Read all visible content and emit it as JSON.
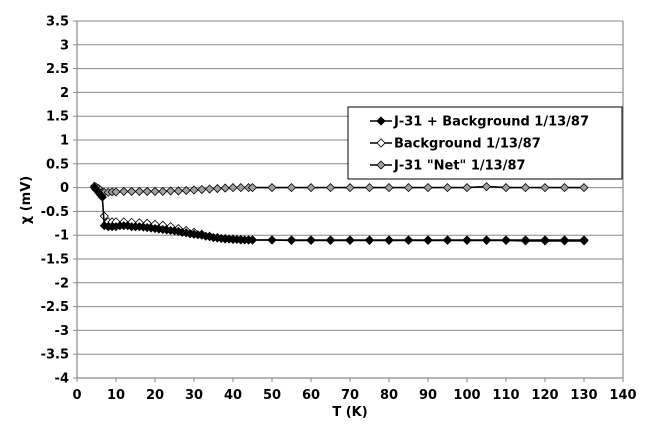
{
  "chart_data": {
    "type": "line",
    "title": "",
    "xlabel": "T (K)",
    "ylabel": "χ (mV)",
    "xlim": [
      0,
      140
    ],
    "ylim": [
      -4,
      3.5
    ],
    "x_ticks": [
      0,
      10,
      20,
      30,
      40,
      50,
      60,
      70,
      80,
      90,
      100,
      110,
      120,
      130,
      140
    ],
    "y_ticks": [
      3.5,
      3,
      2.5,
      2,
      1.5,
      1,
      0.5,
      0,
      -0.5,
      -1,
      -1.5,
      -2,
      -2.5,
      -3,
      -3.5,
      -4
    ],
    "grid": "horizontal",
    "legend_position": "upper right (inside)",
    "series": [
      {
        "name": "J-31 + Background 1/13/87",
        "marker": "diamond-filled-black",
        "color": "#000000",
        "x": [
          4.5,
          5,
          5.5,
          6,
          6.5,
          7,
          8,
          9,
          10,
          11,
          12,
          13,
          14,
          15,
          16,
          17,
          18,
          19,
          20,
          21,
          22,
          23,
          24,
          25,
          26,
          27,
          28,
          29,
          30,
          31,
          32,
          33,
          34,
          35,
          36,
          37,
          38,
          39,
          40,
          41,
          42,
          43,
          44,
          45,
          50,
          55,
          60,
          65,
          70,
          75,
          80,
          85,
          90,
          95,
          100,
          105,
          110,
          115,
          120,
          125,
          130
        ],
        "y": [
          0.0,
          -0.05,
          -0.1,
          -0.15,
          -0.2,
          -0.8,
          -0.82,
          -0.82,
          -0.82,
          -0.8,
          -0.8,
          -0.8,
          -0.82,
          -0.82,
          -0.82,
          -0.83,
          -0.84,
          -0.85,
          -0.86,
          -0.87,
          -0.88,
          -0.89,
          -0.9,
          -0.91,
          -0.92,
          -0.94,
          -0.95,
          -0.97,
          -0.98,
          -0.99,
          -1.0,
          -1.02,
          -1.03,
          -1.05,
          -1.06,
          -1.07,
          -1.08,
          -1.08,
          -1.09,
          -1.09,
          -1.1,
          -1.1,
          -1.1,
          -1.1,
          -1.1,
          -1.1,
          -1.1,
          -1.1,
          -1.1,
          -1.1,
          -1.1,
          -1.1,
          -1.1,
          -1.1,
          -1.1,
          -1.1,
          -1.1,
          -1.1,
          -1.1,
          -1.1,
          -1.1
        ]
      },
      {
        "name": "Background 1/13/87",
        "marker": "diamond-open-white",
        "color": "#000000",
        "x": [
          7,
          8,
          9,
          10,
          12,
          14,
          16,
          18,
          20,
          22,
          24,
          26,
          28,
          30,
          32,
          34,
          36,
          38,
          40,
          42,
          44,
          45,
          50,
          55,
          60,
          65,
          70,
          75,
          80,
          85,
          90,
          95,
          100,
          105,
          110,
          115,
          120,
          125,
          130
        ],
        "y": [
          -0.6,
          -0.72,
          -0.72,
          -0.72,
          -0.72,
          -0.73,
          -0.74,
          -0.75,
          -0.77,
          -0.79,
          -0.82,
          -0.86,
          -0.9,
          -0.94,
          -0.98,
          -1.02,
          -1.05,
          -1.07,
          -1.08,
          -1.09,
          -1.1,
          -1.1,
          -1.1,
          -1.11,
          -1.11,
          -1.11,
          -1.11,
          -1.11,
          -1.11,
          -1.11,
          -1.11,
          -1.11,
          -1.11,
          -1.11,
          -1.11,
          -1.12,
          -1.12,
          -1.12,
          -1.12
        ]
      },
      {
        "name": "J-31 \"Net\" 1/13/87",
        "marker": "diamond-filled-gray",
        "color": "#000000",
        "x": [
          4.5,
          5,
          5.5,
          6,
          6.5,
          7,
          8,
          9,
          10,
          12,
          14,
          16,
          18,
          20,
          22,
          24,
          26,
          28,
          30,
          32,
          34,
          36,
          38,
          40,
          42,
          44,
          45,
          50,
          55,
          60,
          65,
          70,
          75,
          80,
          85,
          90,
          95,
          100,
          105,
          110,
          115,
          120,
          125,
          130
        ],
        "y": [
          0.03,
          0.0,
          -0.02,
          -0.05,
          -0.1,
          -0.1,
          -0.1,
          -0.09,
          -0.09,
          -0.08,
          -0.08,
          -0.08,
          -0.08,
          -0.08,
          -0.08,
          -0.07,
          -0.07,
          -0.06,
          -0.05,
          -0.04,
          -0.03,
          -0.02,
          -0.01,
          0.0,
          0.0,
          0.0,
          0.0,
          0.0,
          0.0,
          0.0,
          0.0,
          0.0,
          0.0,
          0.0,
          0.0,
          0.0,
          0.0,
          0.0,
          0.02,
          0.0,
          0.0,
          0.0,
          0.0,
          0.0
        ]
      }
    ]
  }
}
